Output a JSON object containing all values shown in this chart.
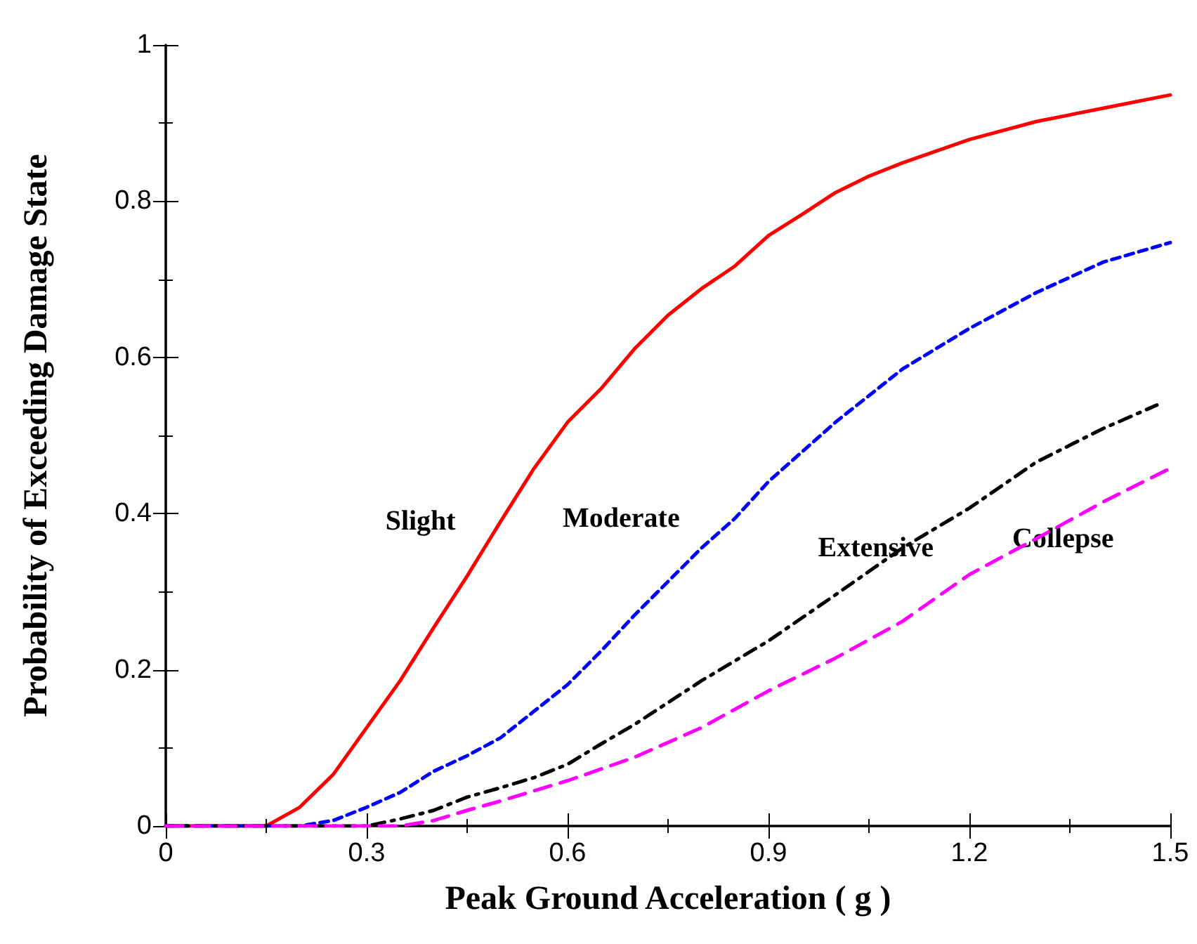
{
  "chart_data": {
    "type": "line",
    "xlabel": "Peak Ground Acceleration ( g )",
    "ylabel": "Probability of Exceeding Damage State",
    "xlim": [
      0,
      1.5
    ],
    "xticks": [
      0,
      0.3,
      0.6,
      0.9,
      1.2,
      1.5
    ],
    "ylim": [
      0,
      1
    ],
    "yticks": [
      0,
      0.2,
      0.4,
      0.6,
      0.8,
      1
    ],
    "grid": false,
    "legend": false,
    "marker": "none",
    "series": [
      {
        "name": "Slight",
        "color": "#ff0000",
        "line_style": "solid",
        "x": [
          0,
          0.15,
          0.2,
          0.25,
          0.3,
          0.35,
          0.4,
          0.45,
          0.5,
          0.55,
          0.6,
          0.65,
          0.7,
          0.75,
          0.8,
          0.85,
          0.9,
          0.95,
          1.0,
          1.05,
          1.1,
          1.2,
          1.3,
          1.4,
          1.5
        ],
        "values": [
          0,
          0,
          0.024,
          0.066,
          0.126,
          0.186,
          0.254,
          0.32,
          0.39,
          0.458,
          0.517,
          0.56,
          0.611,
          0.654,
          0.688,
          0.717,
          0.756,
          0.783,
          0.811,
          0.832,
          0.849,
          0.879,
          0.902,
          0.919,
          0.936
        ]
      },
      {
        "name": "Moderate",
        "color": "#0000ff",
        "line_style": "dashed",
        "x": [
          0,
          0.2,
          0.25,
          0.3,
          0.35,
          0.4,
          0.45,
          0.5,
          0.55,
          0.6,
          0.65,
          0.7,
          0.75,
          0.8,
          0.85,
          0.9,
          1.0,
          1.1,
          1.2,
          1.3,
          1.4,
          1.5
        ],
        "values": [
          0,
          0,
          0.007,
          0.024,
          0.043,
          0.07,
          0.09,
          0.113,
          0.147,
          0.181,
          0.224,
          0.27,
          0.313,
          0.356,
          0.394,
          0.441,
          0.517,
          0.585,
          0.637,
          0.683,
          0.722,
          0.747
        ]
      },
      {
        "name": "Extensive",
        "color": "#000000",
        "line_style": "dashdot",
        "x": [
          0,
          0.3,
          0.35,
          0.4,
          0.45,
          0.5,
          0.55,
          0.6,
          0.65,
          0.7,
          0.8,
          0.9,
          1.0,
          1.1,
          1.2,
          1.3,
          1.4,
          1.48
        ],
        "values": [
          0,
          0,
          0.009,
          0.02,
          0.037,
          0.049,
          0.062,
          0.079,
          0.105,
          0.13,
          0.186,
          0.237,
          0.296,
          0.356,
          0.407,
          0.466,
          0.509,
          0.539
        ]
      },
      {
        "name": "Collepse",
        "color": "#ff00ff",
        "line_style": "longdash",
        "x": [
          0,
          0.35,
          0.4,
          0.45,
          0.5,
          0.6,
          0.7,
          0.8,
          0.9,
          1.0,
          1.1,
          1.2,
          1.3,
          1.4,
          1.5
        ],
        "values": [
          0,
          0,
          0.007,
          0.02,
          0.032,
          0.058,
          0.088,
          0.126,
          0.173,
          0.215,
          0.262,
          0.322,
          0.368,
          0.415,
          0.458
        ]
      }
    ]
  }
}
